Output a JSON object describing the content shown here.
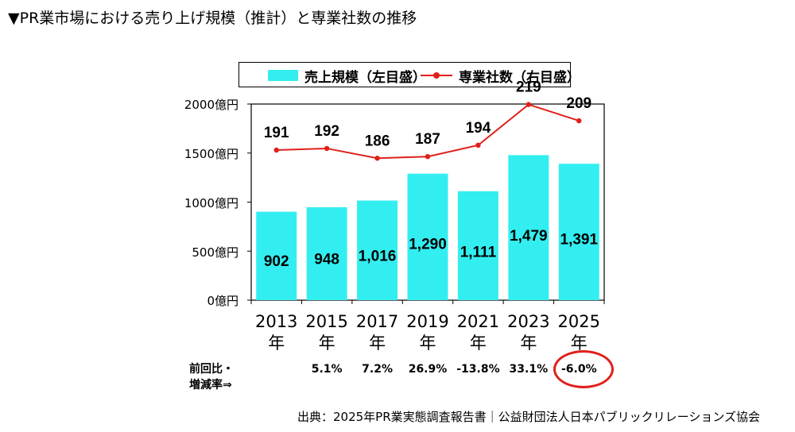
{
  "title": "▼PR業市場における売り上げ規模（推計）と専業社数の推移",
  "legend": {
    "bars_label": "売上規模（左目盛）",
    "line_label": "専業社数（右目盛）"
  },
  "y_ticks": [
    "2000億円",
    "1500億円",
    "1000億円",
    "500億円",
    "0億円"
  ],
  "year_suffix": "年",
  "change_label": "前回比・\n増減率⇒",
  "changes": [
    "",
    "5.1%",
    "7.2%",
    "26.9%",
    "-13.8%",
    "33.1%",
    "-6.0%"
  ],
  "source": "出典：2025年PR業実態調査報告書｜公益財団法人日本パブリックリレーションズ協会",
  "colors": {
    "bar": "#33eef0",
    "line": "#e0201a",
    "highlight": "#e0201a"
  },
  "chart_data": {
    "type": "bar",
    "categories": [
      "2013",
      "2015",
      "2017",
      "2019",
      "2021",
      "2023",
      "2025"
    ],
    "series": [
      {
        "name": "売上規模（左目盛）",
        "type": "bar",
        "axis": "left",
        "values": [
          902,
          948,
          1016,
          1290,
          1111,
          1479,
          1391
        ],
        "labels": [
          "902",
          "948",
          "1,016",
          "1,290",
          "1,111",
          "1,479",
          "1,391"
        ]
      },
      {
        "name": "専業社数（右目盛）",
        "type": "line",
        "axis": "right",
        "values": [
          191,
          192,
          186,
          187,
          194,
          219,
          209
        ]
      }
    ],
    "ylim": [
      0,
      2000
    ],
    "y_unit": "億円",
    "legend_position": "top"
  }
}
